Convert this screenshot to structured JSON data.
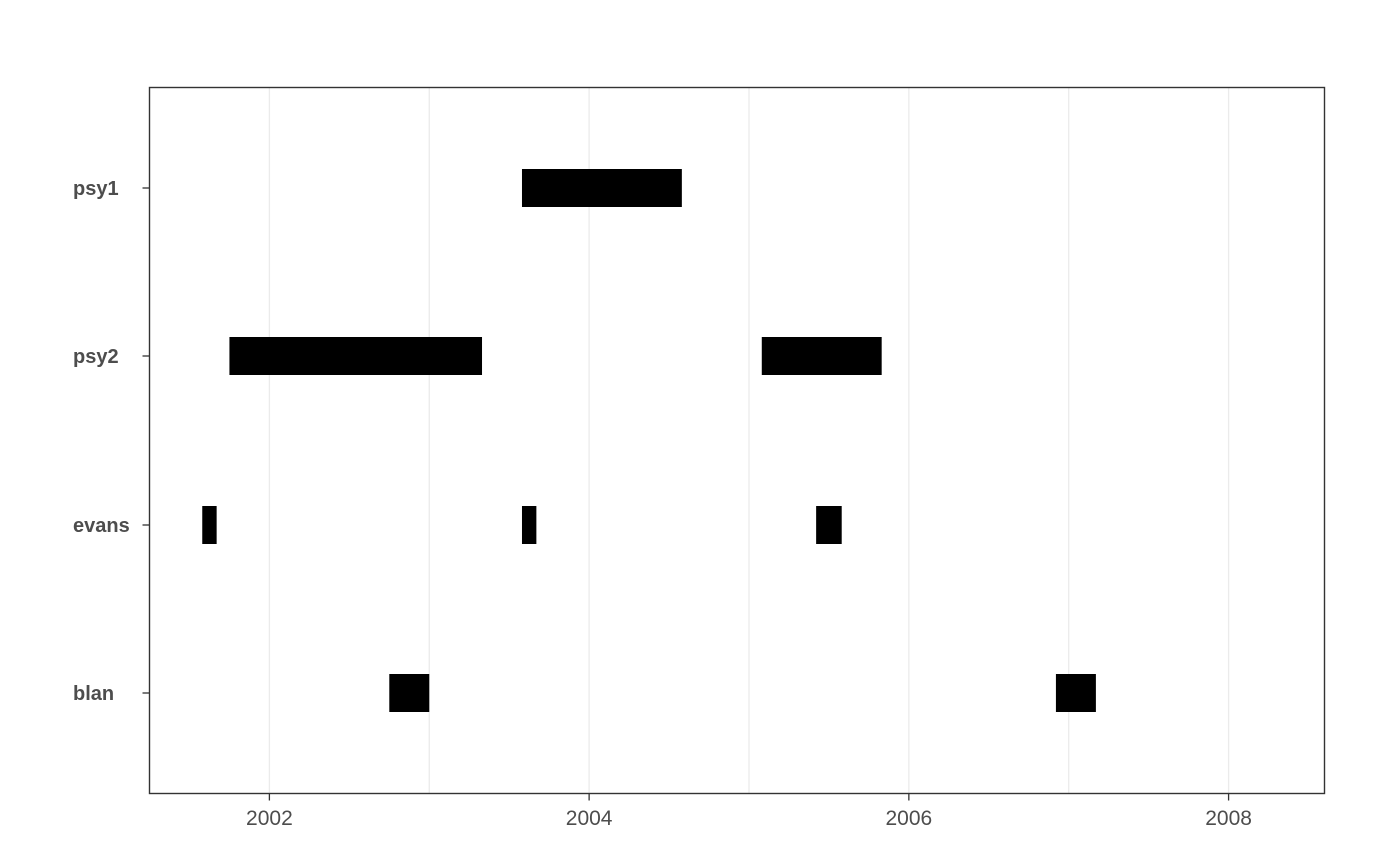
{
  "chart_data": {
    "type": "timeline",
    "title": "",
    "xlabel": "",
    "ylabel": "",
    "xlim": [
      2001.25,
      2008.6
    ],
    "x_ticks": [
      2002,
      2004,
      2006,
      2008
    ],
    "x_tick_labels": [
      "2002",
      "2004",
      "2006",
      "2008"
    ],
    "categories": [
      "psy1",
      "psy2",
      "evans",
      "blan"
    ],
    "grid": "vertical",
    "legend": "none",
    "bar_color": "#000000",
    "series": [
      {
        "category": "psy1",
        "intervals": [
          [
            2003.58,
            2004.58
          ]
        ]
      },
      {
        "category": "psy2",
        "intervals": [
          [
            2001.75,
            2003.33
          ],
          [
            2005.08,
            2005.83
          ]
        ]
      },
      {
        "category": "evans",
        "intervals": [
          [
            2001.58,
            2001.67
          ],
          [
            2003.58,
            2003.67
          ],
          [
            2005.42,
            2005.58
          ]
        ]
      },
      {
        "category": "blan",
        "intervals": [
          [
            2002.75,
            2003.0
          ],
          [
            2006.92,
            2007.17
          ]
        ]
      }
    ]
  }
}
